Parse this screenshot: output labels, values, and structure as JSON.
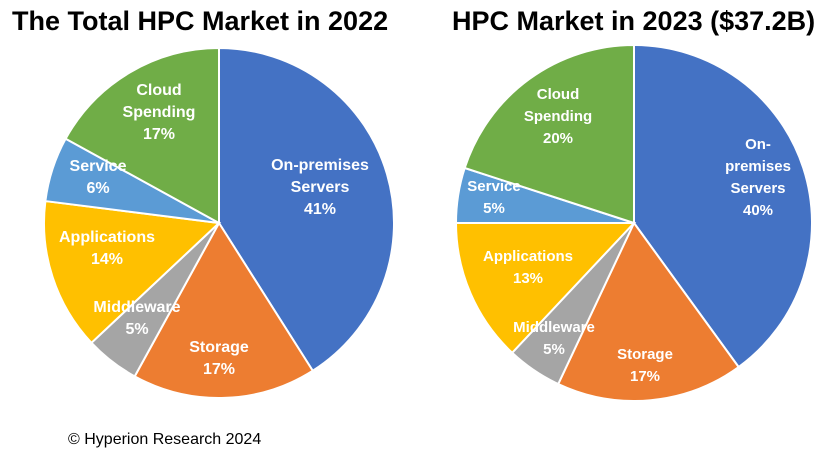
{
  "colors": {
    "on_premises_servers": "#4472C4",
    "storage": "#ED7D31",
    "middleware": "#A5A5A5",
    "applications": "#FFC000",
    "service": "#5B9BD5",
    "cloud_spending": "#70AD47"
  },
  "chart_data": [
    {
      "type": "pie",
      "title": "The Total HPC Market in 2022",
      "slices": [
        {
          "key": "on_premises_servers",
          "label": [
            "On-premises",
            "Servers"
          ],
          "value_label": "41%",
          "value": 41
        },
        {
          "key": "storage",
          "label": [
            "Storage"
          ],
          "value_label": "17%",
          "value": 17
        },
        {
          "key": "middleware",
          "label": [
            "Middleware"
          ],
          "value_label": "5%",
          "value": 5
        },
        {
          "key": "applications",
          "label": [
            "Applications"
          ],
          "value_label": "14%",
          "value": 14
        },
        {
          "key": "service",
          "label": [
            "Service"
          ],
          "value_label": "6%",
          "value": 6
        },
        {
          "key": "cloud_spending",
          "label": [
            "Cloud",
            "Spending"
          ],
          "value_label": "17%",
          "value": 17
        }
      ]
    },
    {
      "type": "pie",
      "title": "HPC Market in 2023 ($37.2B)",
      "slices": [
        {
          "key": "on_premises_servers",
          "label": [
            "On-",
            "premises",
            "Servers"
          ],
          "value_label": "40%",
          "value": 40
        },
        {
          "key": "storage",
          "label": [
            "Storage"
          ],
          "value_label": "17%",
          "value": 17
        },
        {
          "key": "middleware",
          "label": [
            "Middleware"
          ],
          "value_label": "5%",
          "value": 5
        },
        {
          "key": "applications",
          "label": [
            "Applications"
          ],
          "value_label": "13%",
          "value": 13
        },
        {
          "key": "service",
          "label": [
            "Service"
          ],
          "value_label": "5%",
          "value": 5
        },
        {
          "key": "cloud_spending",
          "label": [
            "Cloud",
            "Spending"
          ],
          "value_label": "20%",
          "value": 20
        }
      ]
    }
  ],
  "footer": {
    "copyright": "© Hyperion Research 2024"
  }
}
